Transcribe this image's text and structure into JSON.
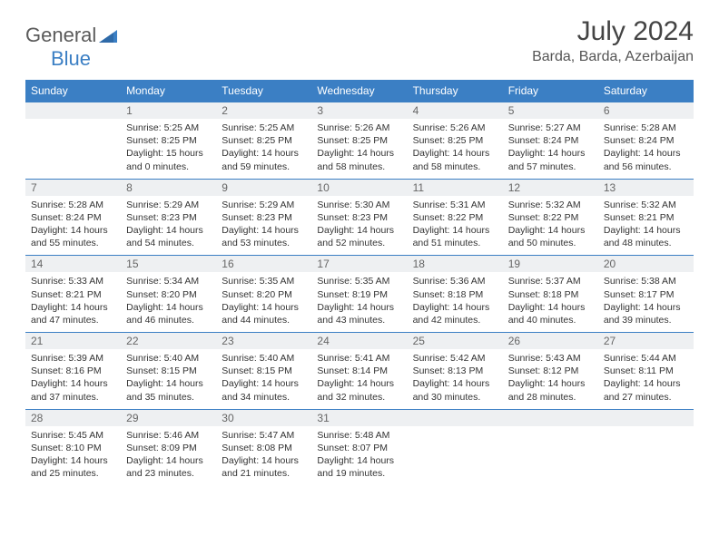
{
  "brand": {
    "general": "General",
    "blue": "Blue"
  },
  "title": "July 2024",
  "location": "Barda, Barda, Azerbaijan",
  "colors": {
    "header_bg": "#3b7fc4",
    "daynum_bg": "#eef0f2",
    "text": "#333333",
    "title": "#444444"
  },
  "weekdays": [
    "Sunday",
    "Monday",
    "Tuesday",
    "Wednesday",
    "Thursday",
    "Friday",
    "Saturday"
  ],
  "weeks": [
    [
      {
        "n": "",
        "lines": []
      },
      {
        "n": "1",
        "lines": [
          "Sunrise: 5:25 AM",
          "Sunset: 8:25 PM",
          "Daylight: 15 hours",
          "and 0 minutes."
        ]
      },
      {
        "n": "2",
        "lines": [
          "Sunrise: 5:25 AM",
          "Sunset: 8:25 PM",
          "Daylight: 14 hours",
          "and 59 minutes."
        ]
      },
      {
        "n": "3",
        "lines": [
          "Sunrise: 5:26 AM",
          "Sunset: 8:25 PM",
          "Daylight: 14 hours",
          "and 58 minutes."
        ]
      },
      {
        "n": "4",
        "lines": [
          "Sunrise: 5:26 AM",
          "Sunset: 8:25 PM",
          "Daylight: 14 hours",
          "and 58 minutes."
        ]
      },
      {
        "n": "5",
        "lines": [
          "Sunrise: 5:27 AM",
          "Sunset: 8:24 PM",
          "Daylight: 14 hours",
          "and 57 minutes."
        ]
      },
      {
        "n": "6",
        "lines": [
          "Sunrise: 5:28 AM",
          "Sunset: 8:24 PM",
          "Daylight: 14 hours",
          "and 56 minutes."
        ]
      }
    ],
    [
      {
        "n": "7",
        "lines": [
          "Sunrise: 5:28 AM",
          "Sunset: 8:24 PM",
          "Daylight: 14 hours",
          "and 55 minutes."
        ]
      },
      {
        "n": "8",
        "lines": [
          "Sunrise: 5:29 AM",
          "Sunset: 8:23 PM",
          "Daylight: 14 hours",
          "and 54 minutes."
        ]
      },
      {
        "n": "9",
        "lines": [
          "Sunrise: 5:29 AM",
          "Sunset: 8:23 PM",
          "Daylight: 14 hours",
          "and 53 minutes."
        ]
      },
      {
        "n": "10",
        "lines": [
          "Sunrise: 5:30 AM",
          "Sunset: 8:23 PM",
          "Daylight: 14 hours",
          "and 52 minutes."
        ]
      },
      {
        "n": "11",
        "lines": [
          "Sunrise: 5:31 AM",
          "Sunset: 8:22 PM",
          "Daylight: 14 hours",
          "and 51 minutes."
        ]
      },
      {
        "n": "12",
        "lines": [
          "Sunrise: 5:32 AM",
          "Sunset: 8:22 PM",
          "Daylight: 14 hours",
          "and 50 minutes."
        ]
      },
      {
        "n": "13",
        "lines": [
          "Sunrise: 5:32 AM",
          "Sunset: 8:21 PM",
          "Daylight: 14 hours",
          "and 48 minutes."
        ]
      }
    ],
    [
      {
        "n": "14",
        "lines": [
          "Sunrise: 5:33 AM",
          "Sunset: 8:21 PM",
          "Daylight: 14 hours",
          "and 47 minutes."
        ]
      },
      {
        "n": "15",
        "lines": [
          "Sunrise: 5:34 AM",
          "Sunset: 8:20 PM",
          "Daylight: 14 hours",
          "and 46 minutes."
        ]
      },
      {
        "n": "16",
        "lines": [
          "Sunrise: 5:35 AM",
          "Sunset: 8:20 PM",
          "Daylight: 14 hours",
          "and 44 minutes."
        ]
      },
      {
        "n": "17",
        "lines": [
          "Sunrise: 5:35 AM",
          "Sunset: 8:19 PM",
          "Daylight: 14 hours",
          "and 43 minutes."
        ]
      },
      {
        "n": "18",
        "lines": [
          "Sunrise: 5:36 AM",
          "Sunset: 8:18 PM",
          "Daylight: 14 hours",
          "and 42 minutes."
        ]
      },
      {
        "n": "19",
        "lines": [
          "Sunrise: 5:37 AM",
          "Sunset: 8:18 PM",
          "Daylight: 14 hours",
          "and 40 minutes."
        ]
      },
      {
        "n": "20",
        "lines": [
          "Sunrise: 5:38 AM",
          "Sunset: 8:17 PM",
          "Daylight: 14 hours",
          "and 39 minutes."
        ]
      }
    ],
    [
      {
        "n": "21",
        "lines": [
          "Sunrise: 5:39 AM",
          "Sunset: 8:16 PM",
          "Daylight: 14 hours",
          "and 37 minutes."
        ]
      },
      {
        "n": "22",
        "lines": [
          "Sunrise: 5:40 AM",
          "Sunset: 8:15 PM",
          "Daylight: 14 hours",
          "and 35 minutes."
        ]
      },
      {
        "n": "23",
        "lines": [
          "Sunrise: 5:40 AM",
          "Sunset: 8:15 PM",
          "Daylight: 14 hours",
          "and 34 minutes."
        ]
      },
      {
        "n": "24",
        "lines": [
          "Sunrise: 5:41 AM",
          "Sunset: 8:14 PM",
          "Daylight: 14 hours",
          "and 32 minutes."
        ]
      },
      {
        "n": "25",
        "lines": [
          "Sunrise: 5:42 AM",
          "Sunset: 8:13 PM",
          "Daylight: 14 hours",
          "and 30 minutes."
        ]
      },
      {
        "n": "26",
        "lines": [
          "Sunrise: 5:43 AM",
          "Sunset: 8:12 PM",
          "Daylight: 14 hours",
          "and 28 minutes."
        ]
      },
      {
        "n": "27",
        "lines": [
          "Sunrise: 5:44 AM",
          "Sunset: 8:11 PM",
          "Daylight: 14 hours",
          "and 27 minutes."
        ]
      }
    ],
    [
      {
        "n": "28",
        "lines": [
          "Sunrise: 5:45 AM",
          "Sunset: 8:10 PM",
          "Daylight: 14 hours",
          "and 25 minutes."
        ]
      },
      {
        "n": "29",
        "lines": [
          "Sunrise: 5:46 AM",
          "Sunset: 8:09 PM",
          "Daylight: 14 hours",
          "and 23 minutes."
        ]
      },
      {
        "n": "30",
        "lines": [
          "Sunrise: 5:47 AM",
          "Sunset: 8:08 PM",
          "Daylight: 14 hours",
          "and 21 minutes."
        ]
      },
      {
        "n": "31",
        "lines": [
          "Sunrise: 5:48 AM",
          "Sunset: 8:07 PM",
          "Daylight: 14 hours",
          "and 19 minutes."
        ]
      },
      {
        "n": "",
        "lines": []
      },
      {
        "n": "",
        "lines": []
      },
      {
        "n": "",
        "lines": []
      }
    ]
  ]
}
